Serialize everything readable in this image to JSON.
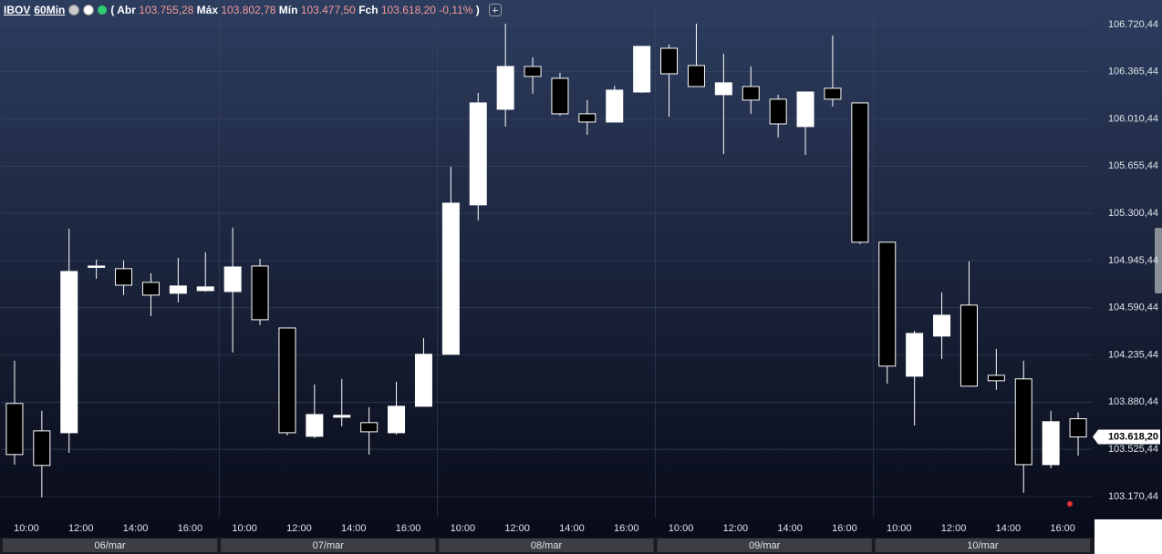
{
  "chart_data": {
    "type": "candlestick",
    "header": {
      "symbol": "IBOV",
      "interval": "60Min",
      "prefix": "(",
      "suffix": ")",
      "fields": [
        {
          "label": "Abr",
          "text": "103.755,28"
        },
        {
          "label": "Máx",
          "text": "103.802,78"
        },
        {
          "label": "Mín",
          "text": "103.477,50"
        },
        {
          "label": "Fch",
          "text": "103.618,20"
        }
      ],
      "change": "-0,11%"
    },
    "categories": [
      "10:00",
      null,
      "12:00",
      null,
      "14:00",
      null,
      "16:00",
      null,
      "10:00",
      null,
      "12:00",
      null,
      "14:00",
      null,
      "16:00",
      null,
      "10:00",
      null,
      "12:00",
      null,
      "14:00",
      null,
      "16:00",
      null,
      "10:00",
      null,
      "12:00",
      null,
      "14:00",
      null,
      "16:00",
      null,
      "10:00",
      null,
      "12:00",
      null,
      "14:00",
      null,
      "16:00",
      null
    ],
    "days": [
      "06/mar",
      "07/mar",
      "08/mar",
      "09/mar",
      "10/mar"
    ],
    "open": [
      103870,
      103664,
      103650,
      104897,
      104884,
      104781,
      104699,
      104719,
      104712,
      104904,
      104438,
      103623,
      103767,
      103726,
      103650,
      103849,
      104240,
      105364,
      106083,
      106405,
      106316,
      106049,
      105987,
      106213,
      106542,
      106412,
      106193,
      106254,
      106159,
      105953,
      106241,
      106131,
      105083,
      104075,
      104377,
      104610,
      104082,
      104055,
      103410,
      103755.28
    ],
    "high": [
      104192,
      103815,
      105185,
      104952,
      104945,
      104850,
      104966,
      105007,
      105192,
      104959,
      104438,
      104013,
      104055,
      103842,
      104034,
      104363,
      105651,
      106206,
      106727,
      106474,
      106357,
      106152,
      106261,
      106556,
      106570,
      106727,
      106501,
      106405,
      106193,
      106213,
      106638,
      106131,
      105083,
      104418,
      104706,
      104939,
      104281,
      104192,
      103815,
      103802.78
    ],
    "low": [
      103410,
      103164,
      103499,
      104808,
      104685,
      104527,
      104630,
      104712,
      104253,
      104459,
      103630,
      103609,
      103698,
      103486,
      103637,
      103849,
      104240,
      105247,
      105953,
      106200,
      106035,
      105891,
      105987,
      106206,
      106028,
      106254,
      105747,
      106049,
      105871,
      105740,
      106104,
      105069,
      104020,
      103705,
      104205,
      104000,
      103973,
      103198,
      103383,
      103477.5
    ],
    "close": [
      103486,
      103404,
      104863,
      104904,
      104760,
      104685,
      104754,
      104747,
      104897,
      104500,
      103650,
      103787,
      103781,
      103657,
      103849,
      104240,
      105377,
      106131,
      106405,
      106330,
      106049,
      105987,
      106227,
      106556,
      106350,
      106254,
      106282,
      106152,
      105973,
      106213,
      106159,
      105083,
      104151,
      104397,
      104534,
      104000,
      104041,
      103410,
      103733,
      103618.2
    ],
    "up_color": "#ffffff",
    "down_color": "#000000",
    "ylim": [
      103012,
      106905
    ],
    "yticks": [
      {
        "value": 103170.44,
        "label": "103.170,44"
      },
      {
        "value": 103525.44,
        "label": "103.525,44"
      },
      {
        "value": 103880.44,
        "label": "103.880,44"
      },
      {
        "value": 104235.44,
        "label": "104.235,44"
      },
      {
        "value": 104590.44,
        "label": "104.590,44"
      },
      {
        "value": 104945.44,
        "label": "104.945,44"
      },
      {
        "value": 105300.44,
        "label": "105.300,44"
      },
      {
        "value": 105655.44,
        "label": "105.655,44"
      },
      {
        "value": 106010.44,
        "label": "106.010,44"
      },
      {
        "value": 106365.44,
        "label": "106.365,44"
      },
      {
        "value": 106720.44,
        "label": "106.720,44"
      }
    ],
    "last_price": {
      "value": 103618.2,
      "label": "103.618,20"
    },
    "grid": true
  }
}
